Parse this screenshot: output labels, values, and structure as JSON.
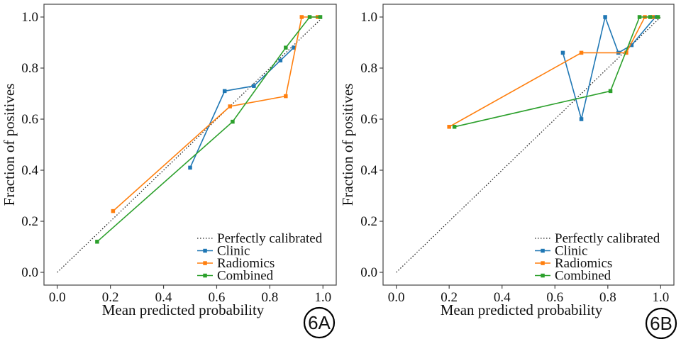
{
  "chart_data": [
    {
      "type": "line",
      "panel_label": "6A",
      "xlabel": "Mean predicted probability",
      "ylabel": "Fraction of positives",
      "xlim": [
        -0.05,
        1.05
      ],
      "ylim": [
        -0.05,
        1.05
      ],
      "xticks": [
        "0.0",
        "0.2",
        "0.4",
        "0.6",
        "0.8",
        "1.0"
      ],
      "yticks": [
        "0.0",
        "0.2",
        "0.4",
        "0.6",
        "0.8",
        "1.0"
      ],
      "legend_position": "bottom-right",
      "grid": false,
      "reference": {
        "name": "Perfectly calibrated",
        "x": [
          0,
          1
        ],
        "y": [
          0,
          1
        ],
        "color": "#222222",
        "style": "dotted"
      },
      "series": [
        {
          "name": "Clinic",
          "color": "#1f77b4",
          "x": [
            0.5,
            0.63,
            0.74,
            0.84,
            0.89
          ],
          "y": [
            0.41,
            0.71,
            0.73,
            0.83,
            0.88
          ]
        },
        {
          "name": "Radiomics",
          "color": "#ff7f0e",
          "x": [
            0.21,
            0.65,
            0.86,
            0.92,
            0.98
          ],
          "y": [
            0.24,
            0.65,
            0.69,
            1.0,
            1.0
          ]
        },
        {
          "name": "Combined",
          "color": "#2ca02c",
          "x": [
            0.15,
            0.66,
            0.86,
            0.95,
            0.99
          ],
          "y": [
            0.12,
            0.59,
            0.88,
            1.0,
            1.0
          ]
        }
      ]
    },
    {
      "type": "line",
      "panel_label": "6B",
      "xlabel": "Mean predicted probability",
      "ylabel": "Fraction of positives",
      "xlim": [
        -0.05,
        1.05
      ],
      "ylim": [
        -0.05,
        1.05
      ],
      "xticks": [
        "0.0",
        "0.2",
        "0.4",
        "0.6",
        "0.8",
        "1.0"
      ],
      "yticks": [
        "0.0",
        "0.2",
        "0.4",
        "0.6",
        "0.8",
        "1.0"
      ],
      "legend_position": "bottom-right",
      "grid": false,
      "reference": {
        "name": "Perfectly calibrated",
        "x": [
          0,
          1
        ],
        "y": [
          0,
          1
        ],
        "color": "#222222",
        "style": "dotted"
      },
      "series": [
        {
          "name": "Clinic",
          "color": "#1f77b4",
          "x": [
            0.63,
            0.7,
            0.79,
            0.84,
            0.89,
            0.98
          ],
          "y": [
            0.86,
            0.6,
            1.0,
            0.86,
            0.89,
            1.0
          ]
        },
        {
          "name": "Radiomics",
          "color": "#ff7f0e",
          "x": [
            0.2,
            0.7,
            0.87,
            0.94,
            0.97
          ],
          "y": [
            0.57,
            0.86,
            0.86,
            1.0,
            1.0
          ]
        },
        {
          "name": "Combined",
          "color": "#2ca02c",
          "x": [
            0.22,
            0.81,
            0.92,
            0.96,
            0.99
          ],
          "y": [
            0.57,
            0.71,
            1.0,
            1.0,
            1.0
          ]
        }
      ]
    }
  ]
}
